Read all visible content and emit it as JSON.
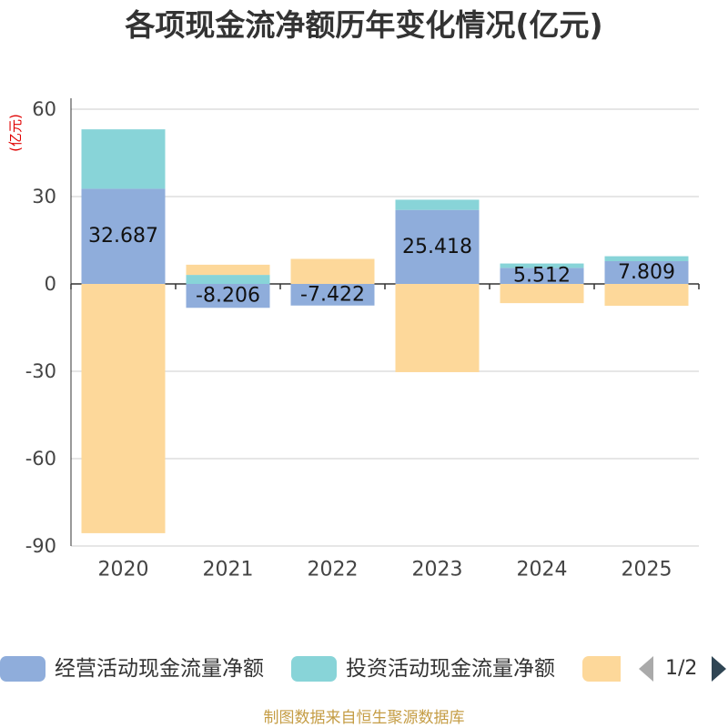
{
  "footer": "制图数据来自恒生聚源数据库",
  "legend": {
    "page_indicator": "1/2",
    "prev_icon": "triangle-left-icon",
    "next_icon": "triangle-right-icon"
  },
  "chart_data": {
    "type": "bar",
    "stacked": true,
    "title": "各项现金流净额历年变化情况(亿元)",
    "ylabel": "(亿元)",
    "categories": [
      "2020",
      "2021",
      "2022",
      "2023",
      "2024",
      "2025"
    ],
    "ylim": [
      -90,
      60
    ],
    "yticks": [
      60,
      30,
      0,
      -30,
      -60,
      -90
    ],
    "grid": true,
    "series": [
      {
        "name": "经营活动现金流量净额",
        "color": "#8faddb",
        "show_labels": true,
        "values": [
          32.687,
          -8.206,
          -7.422,
          25.418,
          5.512,
          7.809
        ]
      },
      {
        "name": "投资活动现金流量净额",
        "color": "#88d4d8",
        "show_labels": false,
        "values": [
          20.4,
          3.1,
          0,
          3.5,
          1.5,
          1.7
        ]
      },
      {
        "color": "#fdd89a",
        "show_labels": false,
        "values": [
          -85.6,
          3.5,
          8.6,
          -30.3,
          -6.6,
          -7.5
        ]
      }
    ]
  }
}
